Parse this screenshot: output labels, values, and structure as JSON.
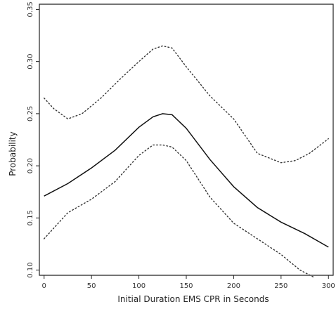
{
  "chart_data": {
    "type": "line",
    "xlabel": "Initial Duration EMS CPR in Seconds",
    "ylabel": "Probability",
    "xlim": [
      -5,
      305
    ],
    "ylim": [
      0.095,
      0.355
    ],
    "x_ticks": [
      0,
      50,
      100,
      150,
      200,
      250,
      300
    ],
    "x_tick_labels": [
      "0",
      "50",
      "100",
      "150",
      "200",
      "250",
      "300"
    ],
    "y_ticks": [
      0.1,
      0.15,
      0.2,
      0.25,
      0.3,
      0.35
    ],
    "y_tick_labels": [
      "0.10",
      "0.15",
      "0.20",
      "0.25",
      "0.30",
      "0.35"
    ],
    "grid": false,
    "series": [
      {
        "style": "solid",
        "x": [
          0,
          25,
          50,
          75,
          100,
          115,
          125,
          135,
          150,
          175,
          200,
          225,
          250,
          275,
          300
        ],
        "y": [
          0.171,
          0.183,
          0.198,
          0.215,
          0.237,
          0.247,
          0.25,
          0.249,
          0.236,
          0.206,
          0.18,
          0.16,
          0.146,
          0.135,
          0.122
        ]
      },
      {
        "style": "dotted",
        "x": [
          0,
          10,
          25,
          40,
          60,
          80,
          100,
          115,
          125,
          135,
          150,
          175,
          200,
          225,
          250,
          265,
          280,
          300
        ],
        "y": [
          0.265,
          0.255,
          0.245,
          0.25,
          0.265,
          0.283,
          0.3,
          0.312,
          0.315,
          0.313,
          0.295,
          0.267,
          0.245,
          0.212,
          0.203,
          0.205,
          0.212,
          0.226
        ]
      },
      {
        "style": "dotted",
        "x": [
          0,
          25,
          50,
          75,
          100,
          115,
          125,
          135,
          150,
          175,
          200,
          225,
          250,
          270,
          285
        ],
        "y": [
          0.13,
          0.155,
          0.168,
          0.185,
          0.21,
          0.22,
          0.22,
          0.218,
          0.205,
          0.17,
          0.145,
          0.13,
          0.115,
          0.1,
          0.093
        ]
      }
    ]
  }
}
